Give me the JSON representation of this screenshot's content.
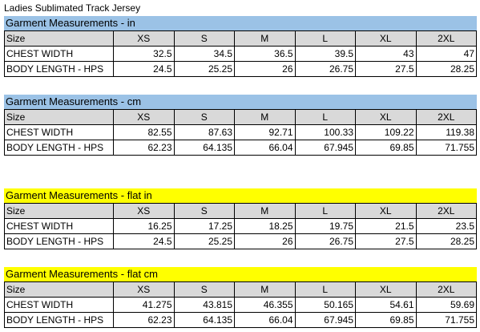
{
  "title": "Ladies Sublimated Track Jersey",
  "sections": [
    {
      "header": "Garment Measurements - in",
      "size_label": "Size",
      "sizes": [
        "XS",
        "S",
        "M",
        "L",
        "XL",
        "2XL"
      ],
      "rows": [
        {
          "label": "CHEST WIDTH",
          "values": [
            "32.5",
            "34.5",
            "36.5",
            "39.5",
            "43",
            "47"
          ]
        },
        {
          "label": "BODY LENGTH - HPS",
          "values": [
            "24.5",
            "25.25",
            "26",
            "26.75",
            "27.5",
            "28.25"
          ]
        }
      ]
    },
    {
      "header": "Garment Measurements - cm",
      "size_label": "Size",
      "sizes": [
        "XS",
        "S",
        "M",
        "L",
        "XL",
        "2XL"
      ],
      "rows": [
        {
          "label": "CHEST WIDTH",
          "values": [
            "82.55",
            "87.63",
            "92.71",
            "100.33",
            "109.22",
            "119.38"
          ]
        },
        {
          "label": "BODY LENGTH - HPS",
          "values": [
            "62.23",
            "64.135",
            "66.04",
            "67.945",
            "69.85",
            "71.755"
          ]
        }
      ]
    },
    {
      "header": "Garment Measurements - flat in",
      "size_label": "Size",
      "sizes": [
        "XS",
        "S",
        "M",
        "L",
        "XL",
        "2XL"
      ],
      "rows": [
        {
          "label": "CHEST WIDTH",
          "values": [
            "16.25",
            "17.25",
            "18.25",
            "19.75",
            "21.5",
            "23.5"
          ]
        },
        {
          "label": "BODY LENGTH - HPS",
          "values": [
            "24.5",
            "25.25",
            "26",
            "26.75",
            "27.5",
            "28.25"
          ]
        }
      ]
    },
    {
      "header": "Garment Measurements - flat cm",
      "size_label": "Size",
      "sizes": [
        "XS",
        "S",
        "M",
        "L",
        "XL",
        "2XL"
      ],
      "rows": [
        {
          "label": "CHEST WIDTH",
          "values": [
            "41.275",
            "43.815",
            "46.355",
            "50.165",
            "54.61",
            "59.69"
          ]
        },
        {
          "label": "BODY LENGTH - HPS",
          "values": [
            "62.23",
            "64.135",
            "66.04",
            "67.945",
            "69.85",
            "71.755"
          ]
        }
      ]
    }
  ],
  "colors": {
    "header_blue": "#9bc2e6",
    "header_yellow": "#ffff00",
    "size_row_gray": "#d9d9d9"
  }
}
